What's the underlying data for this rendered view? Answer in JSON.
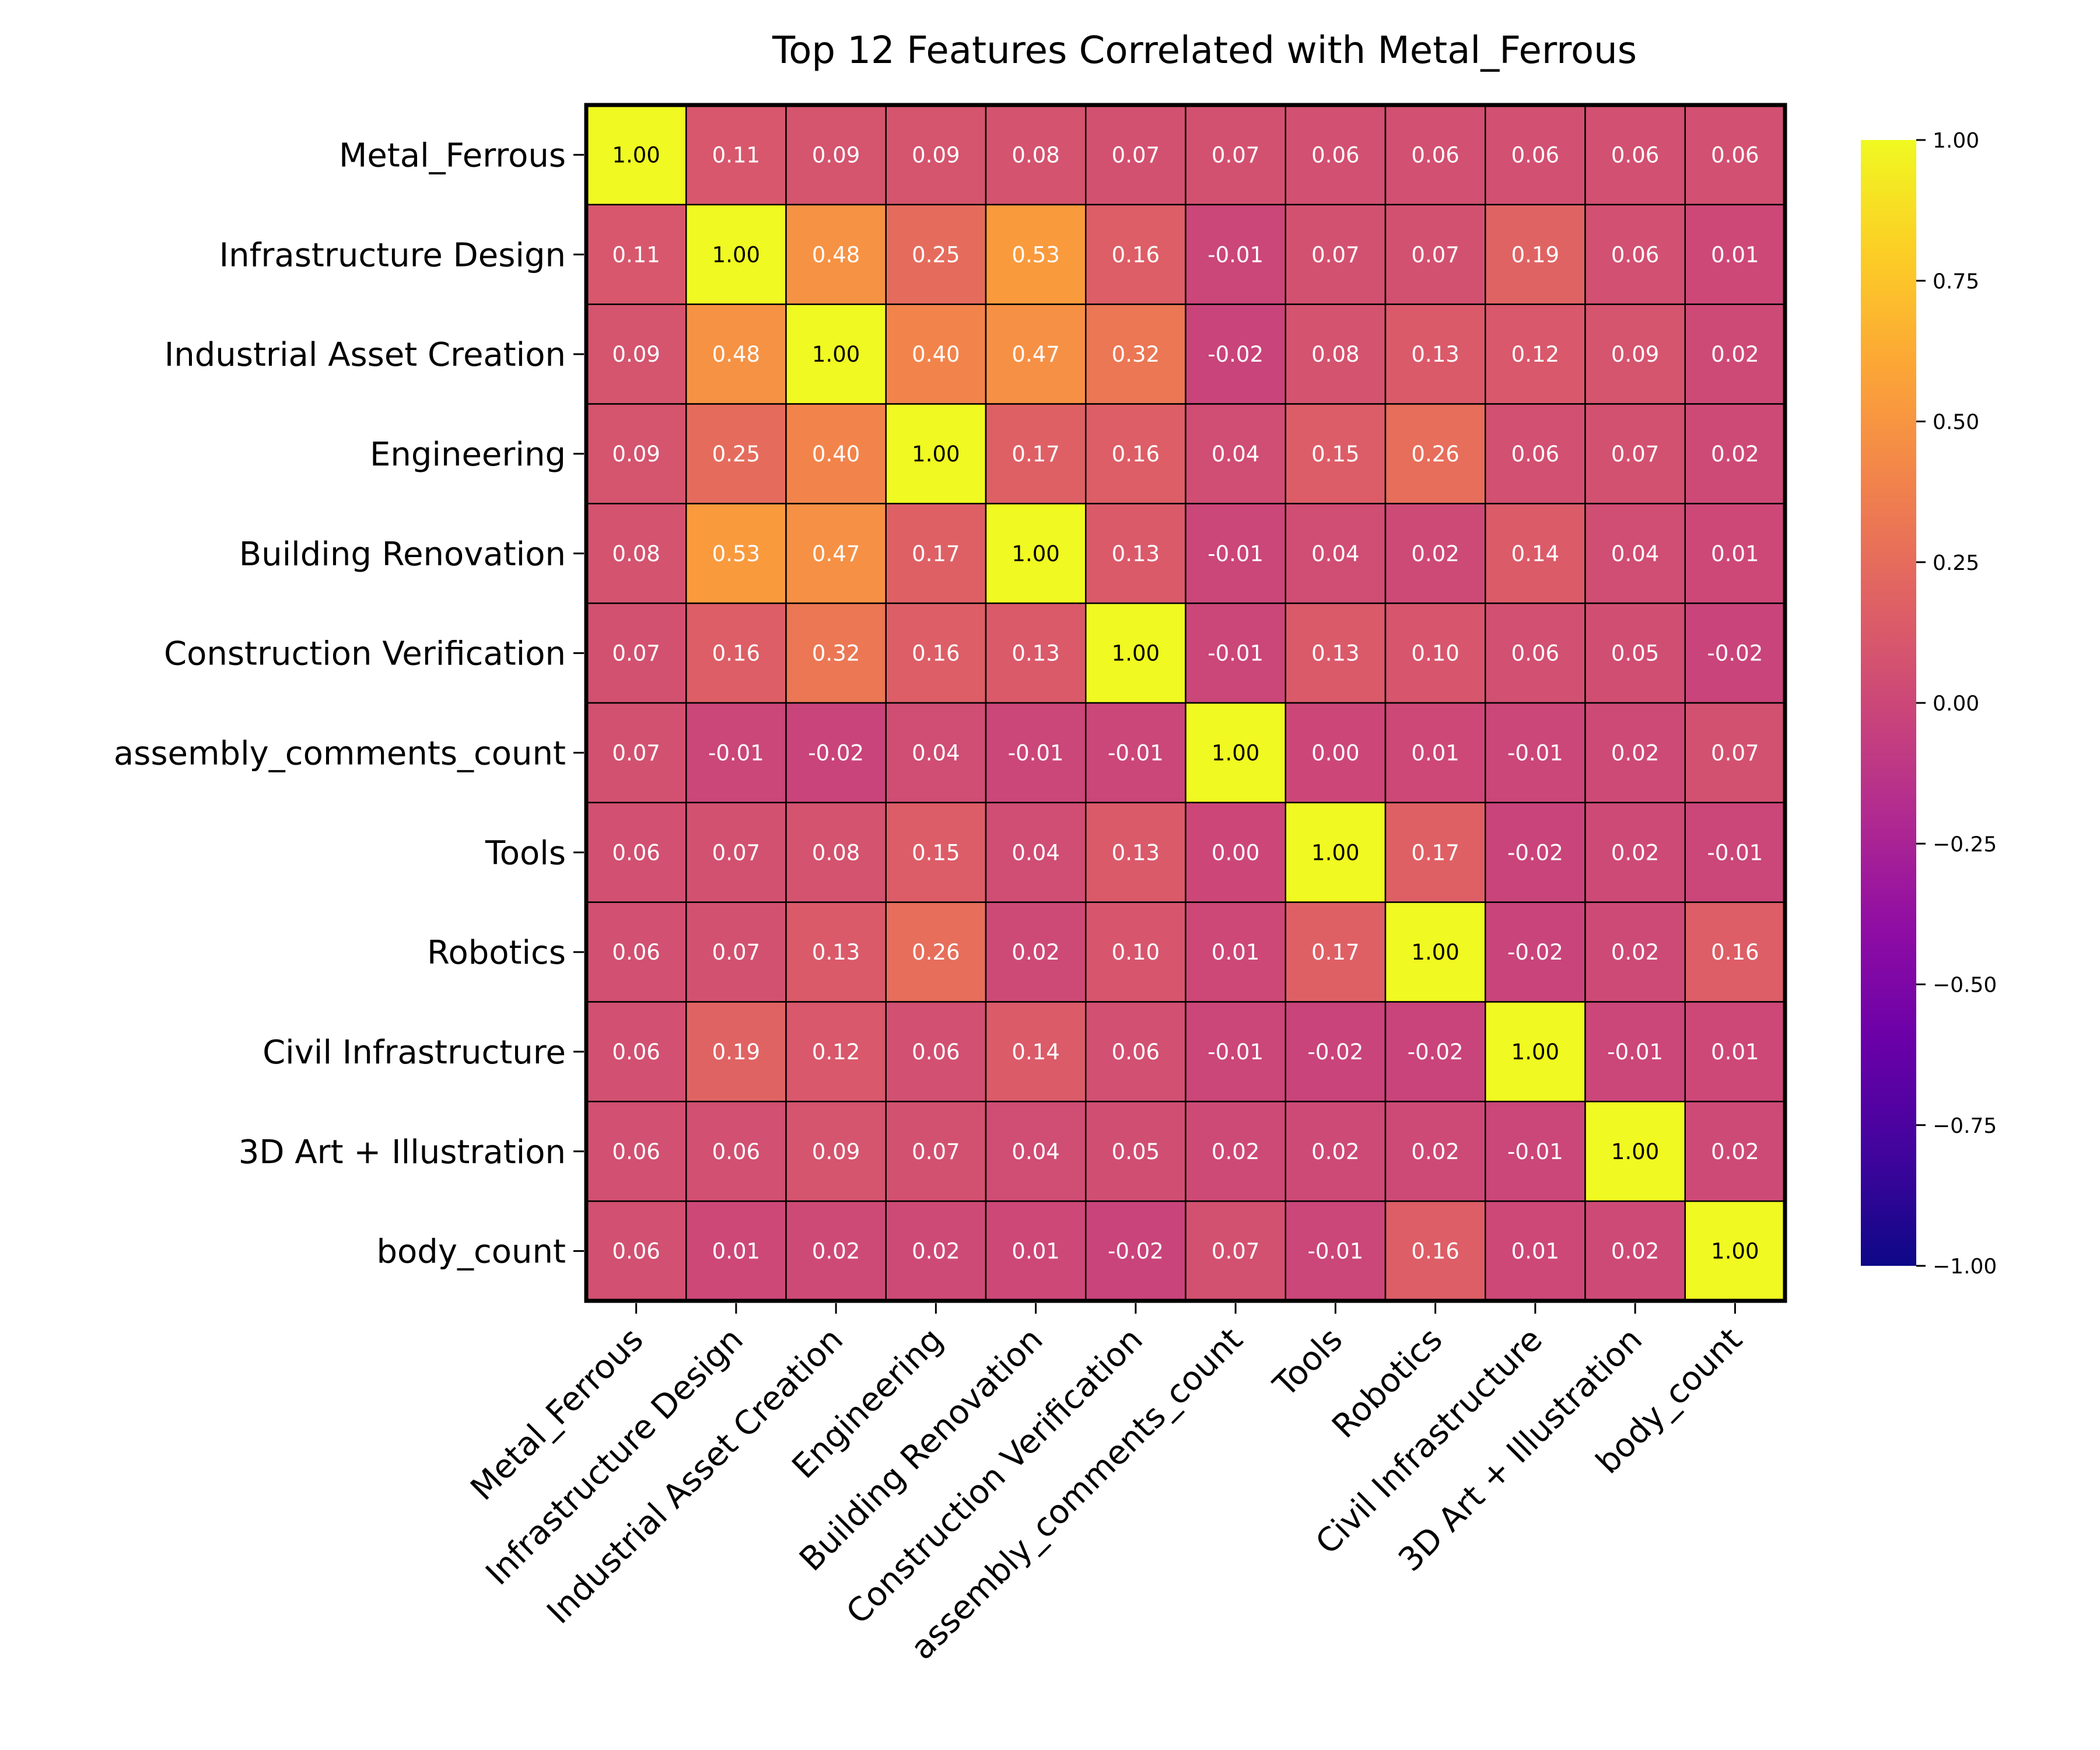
{
  "chart_data": {
    "type": "heatmap",
    "title": "Top 12 Features Correlated with Metal_Ferrous",
    "labels": [
      "Metal_Ferrous",
      "Infrastructure Design",
      "Industrial Asset Creation",
      "Engineering",
      "Building Renovation",
      "Construction Verification",
      "assembly_comments_count",
      "Tools",
      "Robotics",
      "Civil Infrastructure",
      "3D Art + Illustration",
      "body_count"
    ],
    "values": [
      [
        1.0,
        0.11,
        0.09,
        0.09,
        0.08,
        0.07,
        0.07,
        0.06,
        0.06,
        0.06,
        0.06,
        0.06
      ],
      [
        0.11,
        1.0,
        0.48,
        0.25,
        0.53,
        0.16,
        -0.01,
        0.07,
        0.07,
        0.19,
        0.06,
        0.01
      ],
      [
        0.09,
        0.48,
        1.0,
        0.4,
        0.47,
        0.32,
        -0.02,
        0.08,
        0.13,
        0.12,
        0.09,
        0.02
      ],
      [
        0.09,
        0.25,
        0.4,
        1.0,
        0.17,
        0.16,
        0.04,
        0.15,
        0.26,
        0.06,
        0.07,
        0.02
      ],
      [
        0.08,
        0.53,
        0.47,
        0.17,
        1.0,
        0.13,
        -0.01,
        0.04,
        0.02,
        0.14,
        0.04,
        0.01
      ],
      [
        0.07,
        0.16,
        0.32,
        0.16,
        0.13,
        1.0,
        -0.01,
        0.13,
        0.1,
        0.06,
        0.05,
        -0.02
      ],
      [
        0.07,
        -0.01,
        -0.02,
        0.04,
        -0.01,
        -0.01,
        1.0,
        0.0,
        0.01,
        -0.01,
        0.02,
        0.07
      ],
      [
        0.06,
        0.07,
        0.08,
        0.15,
        0.04,
        0.13,
        0.0,
        1.0,
        0.17,
        -0.02,
        0.02,
        -0.01
      ],
      [
        0.06,
        0.07,
        0.13,
        0.26,
        0.02,
        0.1,
        0.01,
        0.17,
        1.0,
        -0.02,
        0.02,
        0.16
      ],
      [
        0.06,
        0.19,
        0.12,
        0.06,
        0.14,
        0.06,
        -0.01,
        -0.02,
        -0.02,
        1.0,
        -0.01,
        0.01
      ],
      [
        0.06,
        0.06,
        0.09,
        0.07,
        0.04,
        0.05,
        0.02,
        0.02,
        0.02,
        -0.01,
        1.0,
        0.02
      ],
      [
        0.06,
        0.01,
        0.02,
        0.02,
        0.01,
        -0.02,
        0.07,
        -0.01,
        0.16,
        0.01,
        0.02,
        1.0
      ]
    ],
    "colorscale": "plasma",
    "vmin": -1.0,
    "vmax": 1.0,
    "colorbar_ticks": [
      "1.00",
      "0.75",
      "0.50",
      "0.25",
      "0.00",
      "−0.25",
      "−0.50",
      "−0.75",
      "−1.00"
    ]
  }
}
